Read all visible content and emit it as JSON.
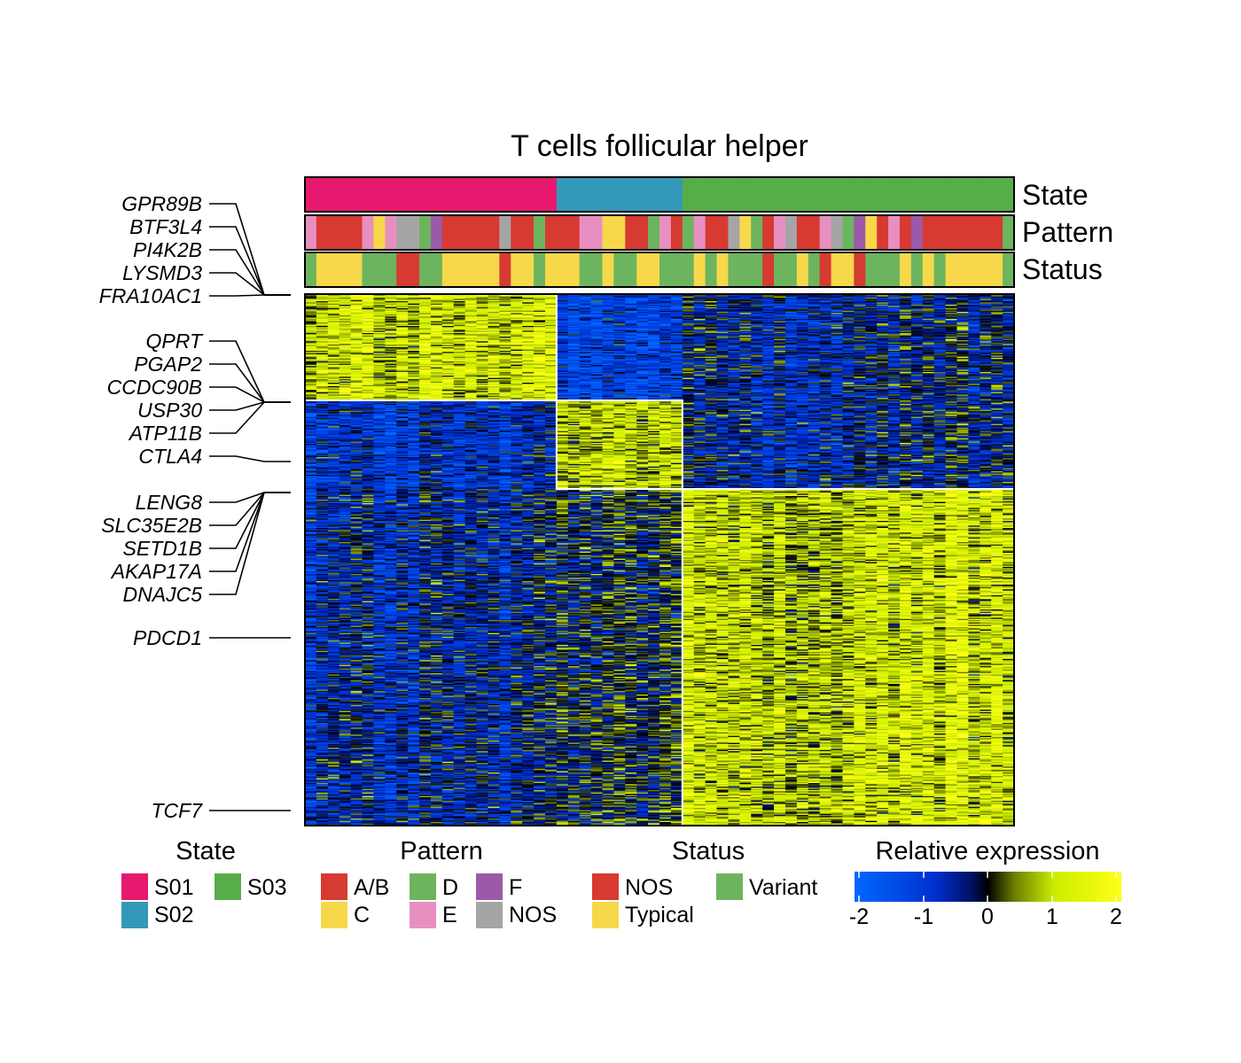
{
  "chart_data": {
    "type": "heatmap",
    "title": "T cells follicular helper",
    "annotation_tracks": [
      "State",
      "Pattern",
      "Status"
    ],
    "colors": {
      "S01": "#e6196e",
      "S02": "#3498b8",
      "S03": "#57ad4a",
      "A/B": "#d63a31",
      "C": "#f6d84a",
      "D": "#6db45e",
      "E": "#e88fc1",
      "F": "#9b59aa",
      "NOS_pattern": "#a5a5a5",
      "NOS_status": "#d63a31",
      "Typical": "#f6d84a",
      "Variant": "#6db45e",
      "scale_low": "#0068ff",
      "scale_mid": "#000000",
      "scale_high": "#ffff16"
    },
    "samples": {
      "count": 62,
      "state": [
        "S01",
        "S01",
        "S01",
        "S01",
        "S01",
        "S01",
        "S01",
        "S01",
        "S01",
        "S01",
        "S01",
        "S01",
        "S01",
        "S01",
        "S01",
        "S01",
        "S01",
        "S01",
        "S01",
        "S01",
        "S01",
        "S01",
        "S02",
        "S02",
        "S02",
        "S02",
        "S02",
        "S02",
        "S02",
        "S02",
        "S02",
        "S02",
        "S02",
        "S03",
        "S03",
        "S03",
        "S03",
        "S03",
        "S03",
        "S03",
        "S03",
        "S03",
        "S03",
        "S03",
        "S03",
        "S03",
        "S03",
        "S03",
        "S03",
        "S03",
        "S03",
        "S03",
        "S03",
        "S03",
        "S03",
        "S03",
        "S03",
        "S03",
        "S03",
        "S03",
        "S03",
        "S03"
      ],
      "pattern": [
        "E",
        "A/B",
        "A/B",
        "A/B",
        "A/B",
        "E",
        "C",
        "E",
        "NOS",
        "NOS",
        "D",
        "F",
        "A/B",
        "A/B",
        "A/B",
        "A/B",
        "A/B",
        "NOS",
        "A/B",
        "A/B",
        "D",
        "A/B",
        "A/B",
        "A/B",
        "E",
        "E",
        "C",
        "C",
        "A/B",
        "A/B",
        "D",
        "E",
        "A/B",
        "D",
        "E",
        "A/B",
        "A/B",
        "NOS",
        "C",
        "D",
        "A/B",
        "E",
        "NOS",
        "A/B",
        "A/B",
        "E",
        "NOS",
        "D",
        "F",
        "C",
        "A/B",
        "E",
        "A/B",
        "F",
        "A/B",
        "A/B",
        "A/B",
        "A/B",
        "A/B",
        "A/B",
        "A/B",
        "D"
      ],
      "status": [
        "Variant",
        "Typical",
        "Typical",
        "Typical",
        "Typical",
        "Variant",
        "Variant",
        "Variant",
        "NOS",
        "NOS",
        "Variant",
        "Variant",
        "Typical",
        "Typical",
        "Typical",
        "Typical",
        "Typical",
        "NOS",
        "Typical",
        "Typical",
        "Variant",
        "Typical",
        "Typical",
        "Typical",
        "Variant",
        "Variant",
        "Typical",
        "Variant",
        "Variant",
        "Typical",
        "Typical",
        "Variant",
        "Variant",
        "Variant",
        "Typical",
        "Variant",
        "Typical",
        "Variant",
        "Variant",
        "Variant",
        "NOS",
        "Variant",
        "Variant",
        "Typical",
        "Variant",
        "NOS",
        "Typical",
        "Typical",
        "NOS",
        "Variant",
        "Variant",
        "Variant",
        "Typical",
        "Variant",
        "Typical",
        "Variant",
        "Typical",
        "Typical",
        "Typical",
        "Typical",
        "Typical",
        "Variant"
      ]
    },
    "row_clusters": [
      {
        "cluster": "S01",
        "n_genes": 90,
        "mean_expression_by_state": {
          "S01": 1.0,
          "S02": -1.2,
          "S03": -0.4
        }
      },
      {
        "cluster": "S02",
        "n_genes": 75,
        "mean_expression_by_state": {
          "S01": -0.9,
          "S02": 0.9,
          "S03": -0.4
        }
      },
      {
        "cluster": "S03",
        "n_genes": 285,
        "mean_expression_by_state": {
          "S01": -0.6,
          "S02": -0.1,
          "S03": 1.0
        }
      }
    ],
    "highlighted_genes": [
      {
        "group": 1,
        "genes": [
          "GPR89B",
          "BTF3L4",
          "PI4K2B",
          "LYSMD3",
          "FRA10AC1"
        ]
      },
      {
        "group": 2,
        "genes": [
          "QPRT",
          "PGAP2",
          "CCDC90B",
          "USP30",
          "ATP11B"
        ]
      },
      {
        "group": 3,
        "genes": [
          "CTLA4"
        ]
      },
      {
        "group": 4,
        "genes": [
          "LENG8",
          "SLC35E2B",
          "SETD1B",
          "AKAP17A",
          "DNAJC5"
        ]
      },
      {
        "group": 5,
        "genes": [
          "PDCD1"
        ]
      },
      {
        "group": 6,
        "genes": [
          "TCF7"
        ]
      }
    ],
    "legend": {
      "state": {
        "title": "State",
        "items": [
          "S01",
          "S02",
          "S03"
        ]
      },
      "pattern": {
        "title": "Pattern",
        "items": [
          "A/B",
          "C",
          "D",
          "E",
          "F",
          "NOS"
        ]
      },
      "status": {
        "title": "Status",
        "items": [
          "NOS",
          "Typical",
          "Variant"
        ]
      },
      "scale": {
        "title": "Relative expression",
        "ticks": [
          "-2",
          "-1",
          "0",
          "1",
          "2"
        ],
        "range": [
          -2,
          2
        ]
      }
    }
  }
}
